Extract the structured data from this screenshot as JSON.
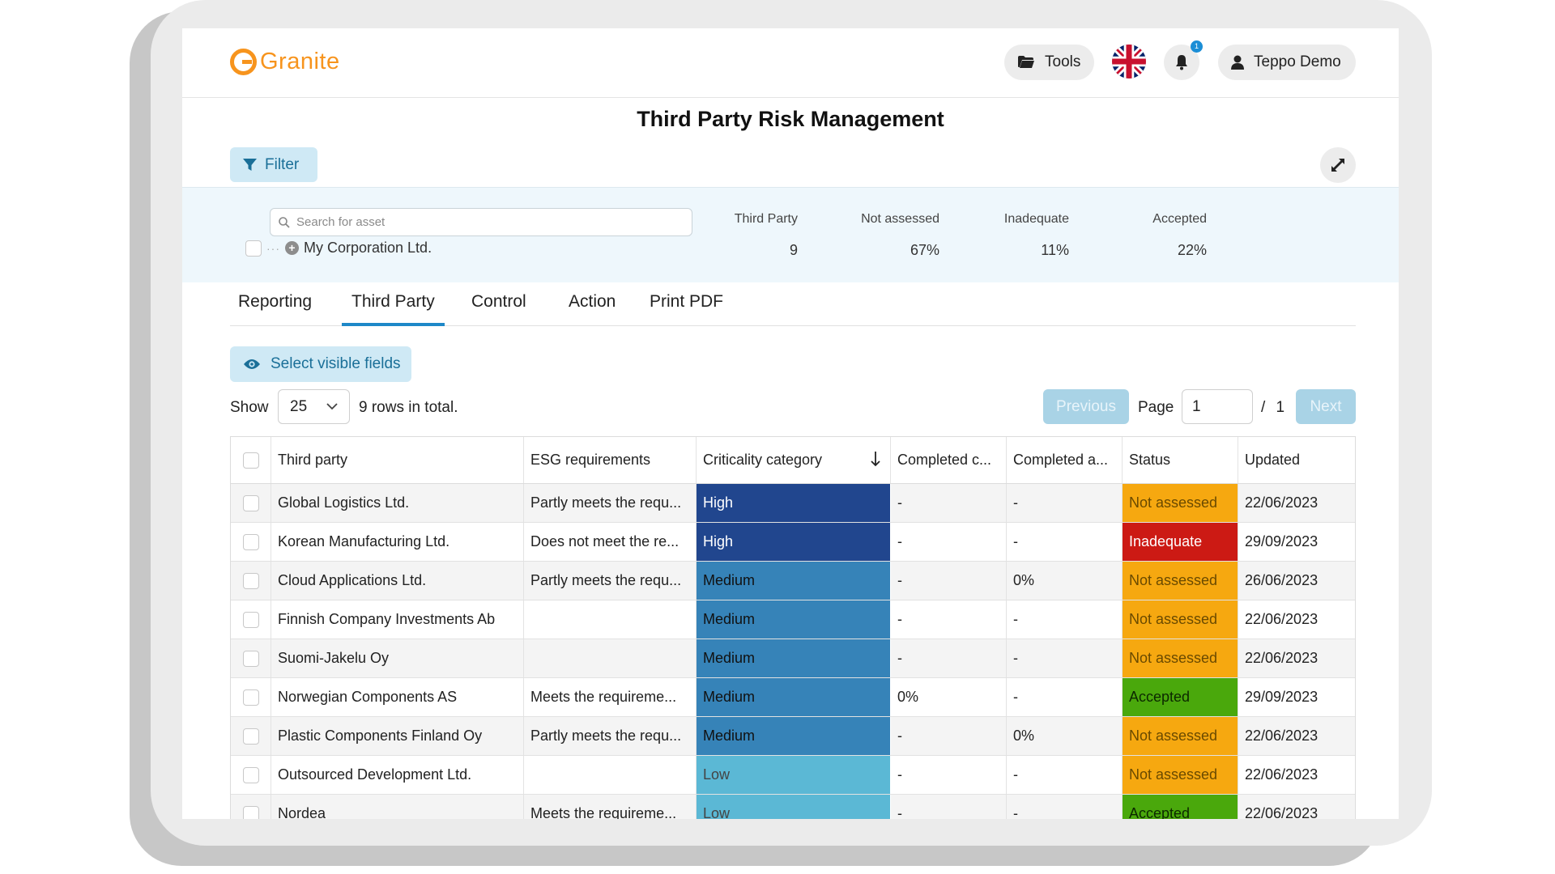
{
  "brand": {
    "name": "Granite",
    "accent": "#f7941d"
  },
  "header": {
    "tools_label": "Tools",
    "notification_count": "1",
    "user_name": "Teppo Demo"
  },
  "page": {
    "title": "Third Party Risk Management"
  },
  "filter": {
    "label": "Filter"
  },
  "summary": {
    "search_placeholder": "Search for asset",
    "tree_item": "My Corporation Ltd.",
    "headers": [
      "Third Party",
      "Not assessed",
      "Inadequate",
      "Accepted"
    ],
    "values": [
      "9",
      "67%",
      "11%",
      "22%"
    ]
  },
  "tabs": [
    "Reporting",
    "Third Party",
    "Control",
    "Action",
    "Print PDF"
  ],
  "active_tab": "Third Party",
  "visible_fields_label": "Select visible fields",
  "pagination": {
    "show_label": "Show",
    "page_size": "25",
    "rows_total": "9 rows in total.",
    "previous": "Previous",
    "page_label": "Page",
    "page": "1",
    "of": "/ 1",
    "next": "Next"
  },
  "table": {
    "columns": [
      "Third party",
      "ESG requirements",
      "Criticality category",
      "Completed c...",
      "Completed a...",
      "Status",
      "Updated"
    ],
    "sort_column": "Criticality category",
    "colors": {
      "high": "#21468e",
      "medium": "#3683b8",
      "low": "#5bb8d5",
      "not_assessed": "#f6a810",
      "inadequate": "#cc1a14",
      "accepted": "#4aa80c"
    },
    "rows": [
      [
        "Global Logistics Ltd.",
        "Partly meets the requ...",
        "High",
        "-",
        "-",
        "Not assessed",
        "22/06/2023"
      ],
      [
        "Korean Manufacturing Ltd.",
        "Does not meet the re...",
        "High",
        "-",
        "-",
        "Inadequate",
        "29/09/2023"
      ],
      [
        "Cloud Applications Ltd.",
        "Partly meets the requ...",
        "Medium",
        "-",
        "0%",
        "Not assessed",
        "26/06/2023"
      ],
      [
        "Finnish Company Investments Ab",
        "",
        "Medium",
        "-",
        "-",
        "Not assessed",
        "22/06/2023"
      ],
      [
        "Suomi-Jakelu Oy",
        "",
        "Medium",
        "-",
        "-",
        "Not assessed",
        "22/06/2023"
      ],
      [
        "Norwegian Components AS",
        "Meets the requireme...",
        "Medium",
        "0%",
        "-",
        "Accepted",
        "29/09/2023"
      ],
      [
        "Plastic Components Finland Oy",
        "Partly meets the requ...",
        "Medium",
        "-",
        "0%",
        "Not assessed",
        "22/06/2023"
      ],
      [
        "Outsourced Development Ltd.",
        "",
        "Low",
        "-",
        "-",
        "Not assessed",
        "22/06/2023"
      ],
      [
        "Nordea",
        "Meets the requireme...",
        "Low",
        "-",
        "-",
        "Accepted",
        "22/06/2023"
      ]
    ]
  }
}
